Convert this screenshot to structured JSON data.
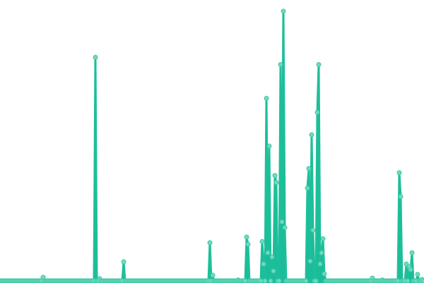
{
  "chart_data": {
    "type": "area",
    "title": "",
    "xlabel": "",
    "ylabel": "",
    "axes_visible": false,
    "grid": false,
    "legend": "none",
    "ylim": [
      0,
      100
    ],
    "markers": true,
    "colors": {
      "fill": "#1abc9c",
      "line": "#1dbf9a",
      "marker_fill": "#72d9bd",
      "marker_stroke": "#3cc9a3"
    },
    "values": [
      0,
      0,
      0,
      0,
      0,
      0,
      0,
      0,
      0,
      0,
      0,
      0,
      0,
      0,
      0,
      0,
      0,
      0,
      0,
      0,
      0,
      0,
      0,
      0,
      0,
      0,
      0,
      0,
      0,
      0,
      1.3,
      0,
      0,
      0,
      0,
      0,
      0,
      0,
      0,
      0,
      0,
      0,
      0,
      0,
      0,
      0,
      0,
      0,
      0,
      0,
      0,
      0,
      0,
      0,
      0,
      0,
      0,
      0,
      0,
      0,
      0,
      0,
      0,
      0,
      0,
      0,
      0,
      79.6,
      0,
      0,
      0.8,
      0,
      0,
      0,
      0,
      0,
      0,
      0,
      0,
      0,
      0,
      0,
      0,
      0,
      0,
      0,
      0,
      6.8,
      0,
      0,
      0,
      0,
      0,
      0,
      0,
      0,
      0,
      0,
      0,
      0,
      0,
      0,
      0,
      0,
      0,
      0,
      0,
      0,
      0,
      0,
      0,
      0,
      0,
      0,
      0,
      0,
      0,
      0,
      0,
      0,
      0,
      0,
      0,
      0,
      0,
      0,
      0,
      0,
      0,
      0,
      0,
      0,
      0,
      0,
      0,
      0,
      0,
      0,
      0,
      0,
      0,
      0,
      0,
      0,
      0,
      0,
      0,
      0,
      13.6,
      0,
      2,
      0,
      0,
      0,
      0,
      0,
      0,
      0,
      0,
      0,
      0,
      0,
      0,
      0,
      0,
      0,
      0,
      0,
      0.3,
      0,
      0,
      0,
      0,
      0,
      15.6,
      13,
      0,
      0,
      0,
      0,
      0,
      0,
      0,
      0,
      0,
      14,
      6,
      0,
      65,
      10,
      48,
      0,
      8.5,
      3.5,
      37.5,
      35,
      0,
      0,
      77,
      21,
      96,
      19,
      0,
      0,
      0,
      0,
      0,
      0,
      0,
      0,
      0,
      0,
      0,
      0,
      0,
      0,
      0,
      33,
      40,
      7,
      52,
      18,
      0,
      0,
      60,
      77,
      6,
      10,
      15,
      2.5,
      0,
      0,
      0,
      0,
      0,
      0,
      0,
      0,
      0,
      0,
      0,
      0,
      0,
      0,
      0,
      0,
      0,
      0,
      0,
      0,
      0,
      0,
      0,
      0,
      0,
      0,
      0,
      0,
      0,
      0,
      0,
      0,
      0,
      1,
      0,
      0,
      0,
      0,
      0,
      0,
      0.3,
      0,
      0,
      0,
      0,
      0,
      0,
      0,
      0,
      0,
      0,
      0,
      38.5,
      30,
      0,
      0,
      0,
      6,
      0,
      5,
      4,
      10,
      0,
      0,
      0,
      2.3,
      0,
      0,
      0.5,
      0
    ]
  }
}
